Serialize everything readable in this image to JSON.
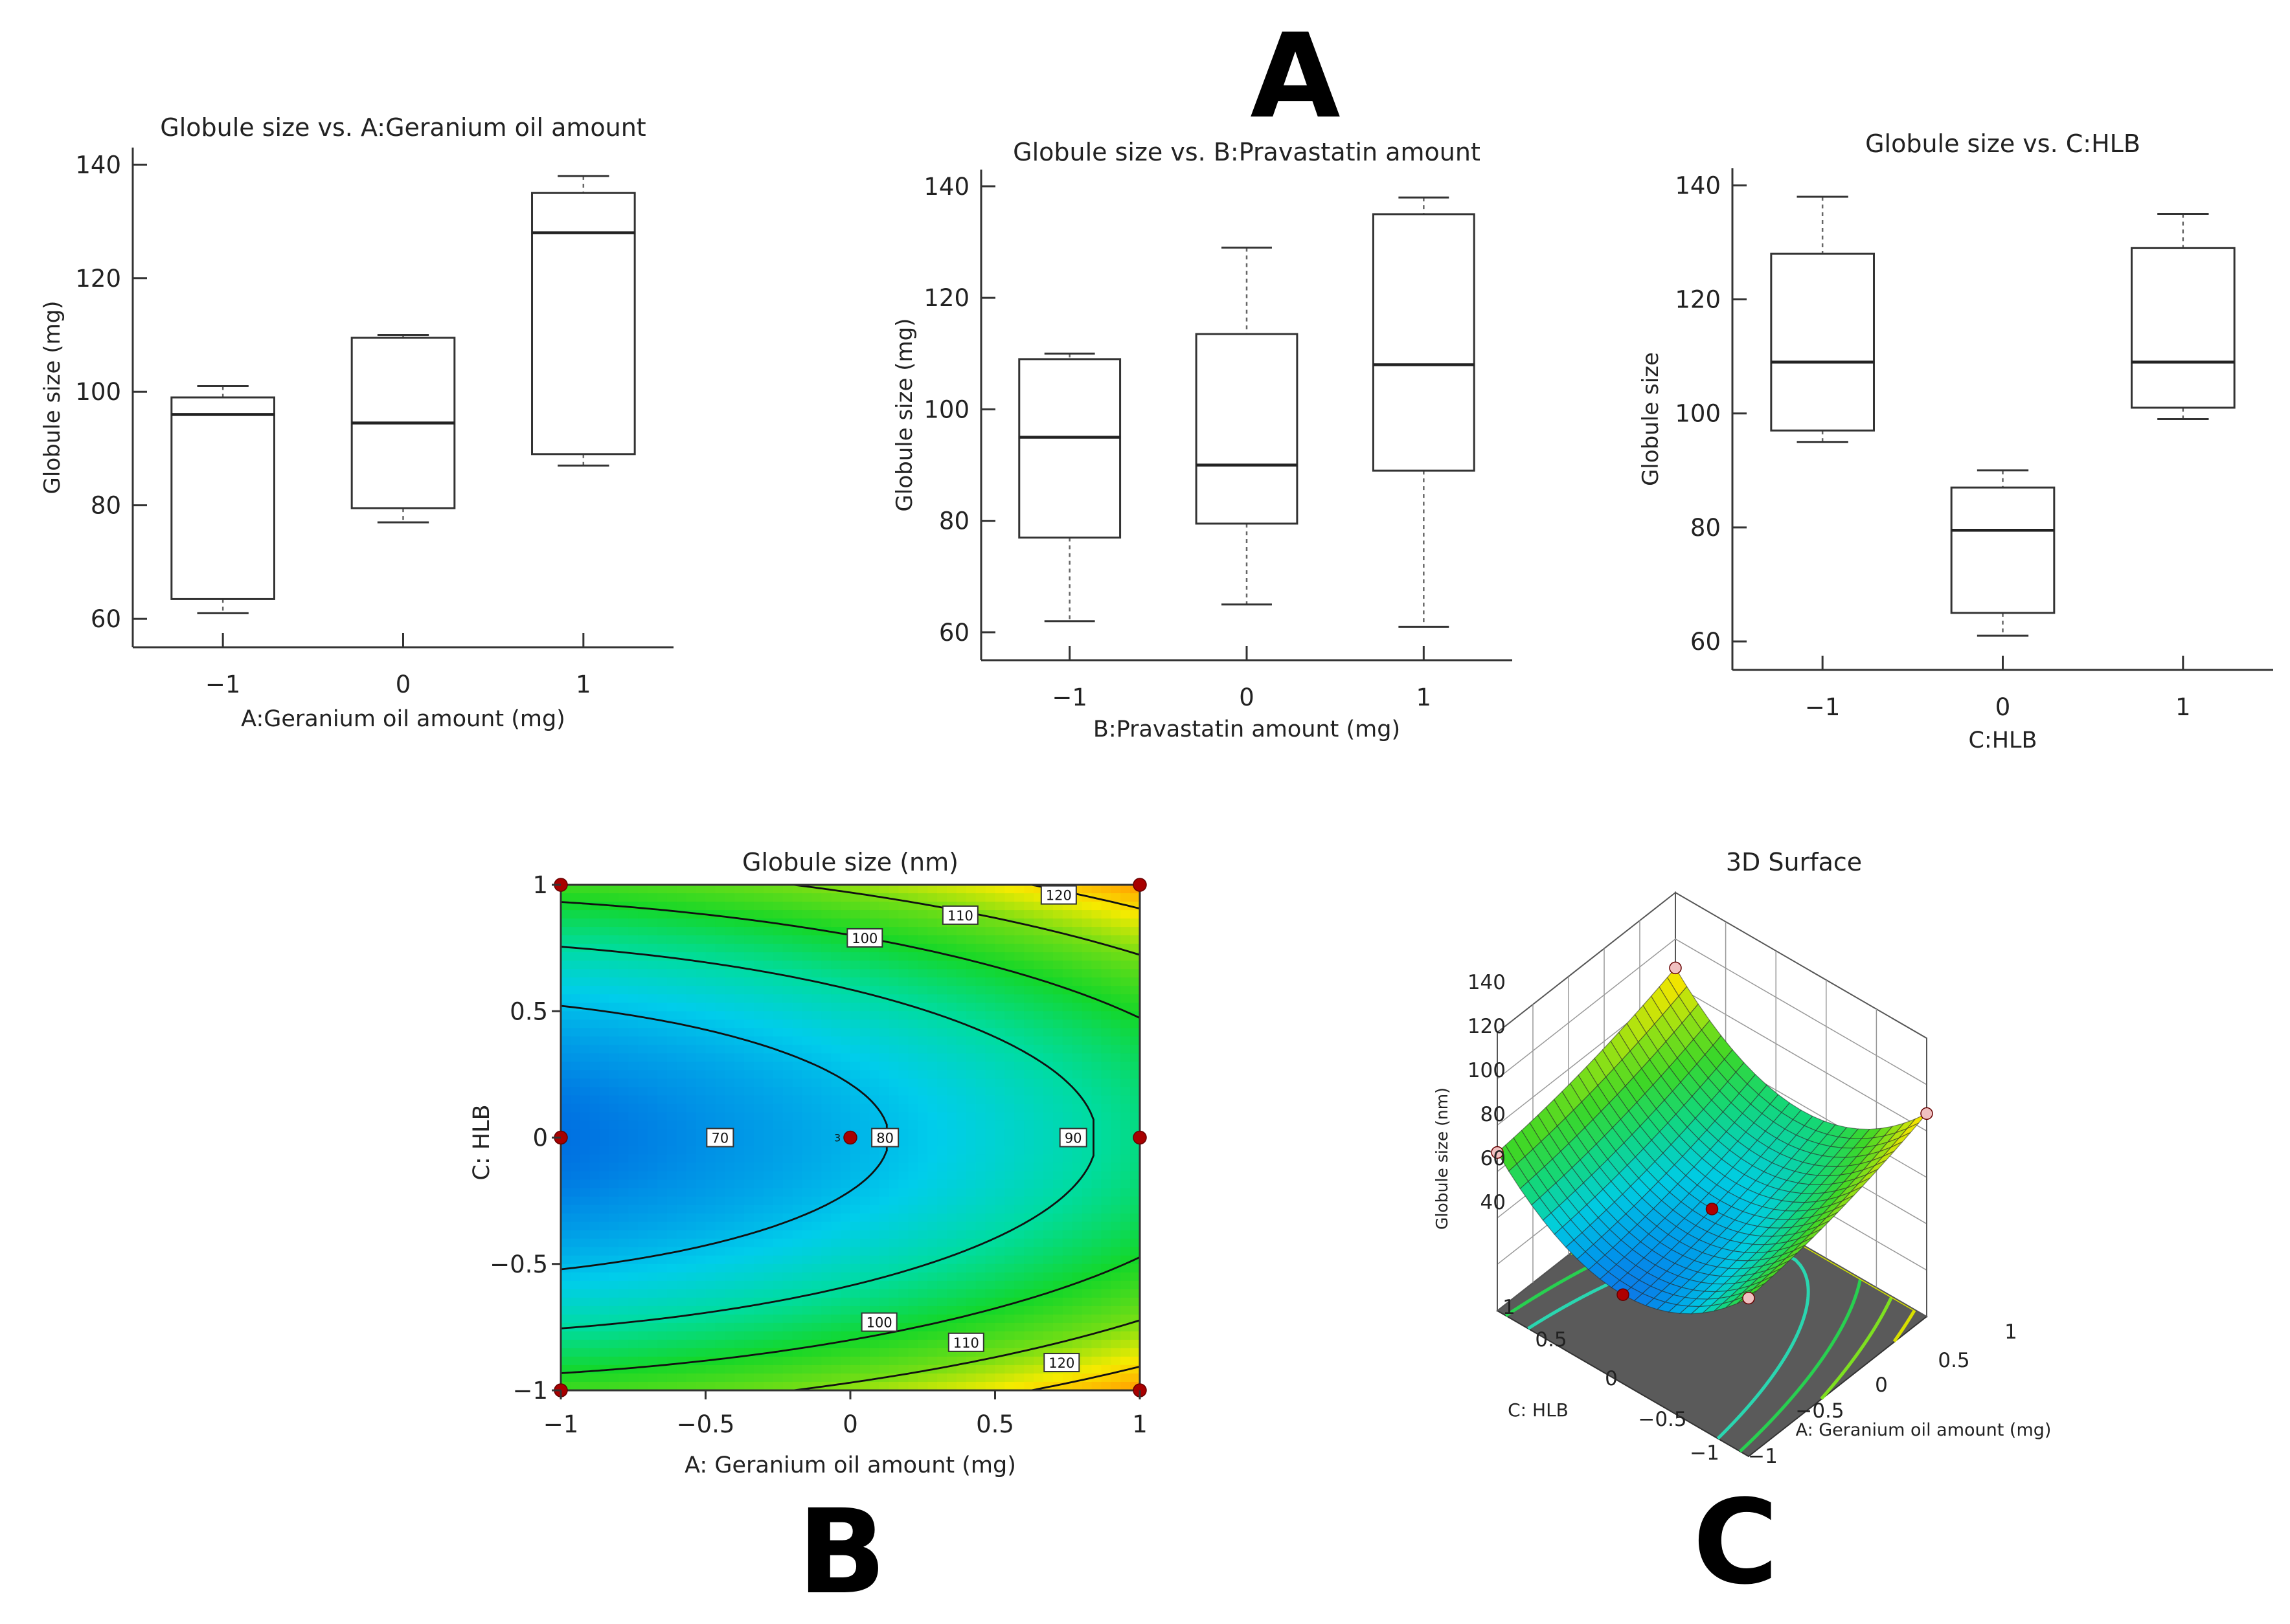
{
  "panel_labels": {
    "a": "A",
    "b": "B",
    "c": "C"
  },
  "chart_data": [
    {
      "type": "box",
      "title": "Globule size vs. A:Geranium oil amount",
      "xlabel": "A:Geranium oil amount (mg)",
      "ylabel": "Globule size (mg)",
      "categories": [
        "−1",
        "0",
        "1"
      ],
      "yticks": [
        60,
        80,
        100,
        120,
        140
      ],
      "ylim": [
        55,
        143
      ],
      "boxes": [
        {
          "min": 61,
          "q1": 63.5,
          "median": 96,
          "q3": 99,
          "max": 101
        },
        {
          "min": 77,
          "q1": 79.5,
          "median": 94.5,
          "q3": 109.5,
          "max": 110
        },
        {
          "min": 87,
          "q1": 89,
          "median": 128,
          "q3": 135,
          "max": 138
        }
      ]
    },
    {
      "type": "box",
      "title": "Globule size vs. B:Pravastatin amount",
      "xlabel": "B:Pravastatin amount  (mg)",
      "ylabel": "Globule size (mg)",
      "categories": [
        "−1",
        "0",
        "1"
      ],
      "yticks": [
        60,
        80,
        100,
        120,
        140
      ],
      "ylim": [
        55,
        143
      ],
      "boxes": [
        {
          "min": 62,
          "q1": 77,
          "median": 95,
          "q3": 109,
          "max": 110
        },
        {
          "min": 65,
          "q1": 79.5,
          "median": 90,
          "q3": 113.5,
          "max": 129
        },
        {
          "min": 61,
          "q1": 89,
          "median": 108,
          "q3": 135,
          "max": 138
        }
      ]
    },
    {
      "type": "box",
      "title": "Globule size vs. C:HLB",
      "xlabel": "C:HLB",
      "ylabel": "Globule size",
      "categories": [
        "−1",
        "0",
        "1"
      ],
      "yticks": [
        60,
        80,
        100,
        120,
        140
      ],
      "ylim": [
        55,
        143
      ],
      "boxes": [
        {
          "min": 95,
          "q1": 97,
          "median": 109,
          "q3": 128,
          "max": 138
        },
        {
          "min": 61,
          "q1": 65,
          "median": 79.5,
          "q3": 87,
          "max": 90
        },
        {
          "min": 99,
          "q1": 101,
          "median": 109,
          "q3": 129,
          "max": 135
        }
      ]
    },
    {
      "type": "contour",
      "title": "Globule size (nm)",
      "xlabel": "A: Geranium oil amount (mg)",
      "ylabel": "C: HLB",
      "xticks": [
        "−1",
        "−0.5",
        "0",
        "0.5",
        "1"
      ],
      "yticks": [
        "−1",
        "−0.5",
        "0",
        "0.5",
        "1"
      ],
      "xlim": [
        -1,
        1
      ],
      "ylim": [
        -1,
        1
      ],
      "model": {
        "intercept": 78.5,
        "a": 10.8,
        "a2": 3.2,
        "c2": 33.5
      },
      "levels": [
        70,
        80,
        90,
        100,
        110,
        120
      ],
      "contour_labels": [
        "70",
        "80",
        "90",
        "100",
        "110",
        "120",
        "100",
        "110",
        "120"
      ],
      "center_point_count": "3",
      "design_points": [
        [
          -1,
          1
        ],
        [
          1,
          1
        ],
        [
          -1,
          0
        ],
        [
          0,
          0
        ],
        [
          1,
          0
        ],
        [
          -1,
          -1
        ],
        [
          1,
          -1
        ]
      ]
    },
    {
      "type": "surface",
      "title": "3D Surface",
      "zlabel": "Globule size (nm)",
      "xlabel": "A: Geranium oil amount (mg)",
      "ylabel": "C: HLB",
      "zticks": [
        "40",
        "60",
        "80",
        "100",
        "120",
        "140"
      ],
      "xticks": [
        "−1",
        "−0.5",
        "0",
        "0.5",
        "1"
      ],
      "yticks": [
        "−1",
        "−0.5",
        "0",
        "0.5",
        "1"
      ]
    }
  ]
}
